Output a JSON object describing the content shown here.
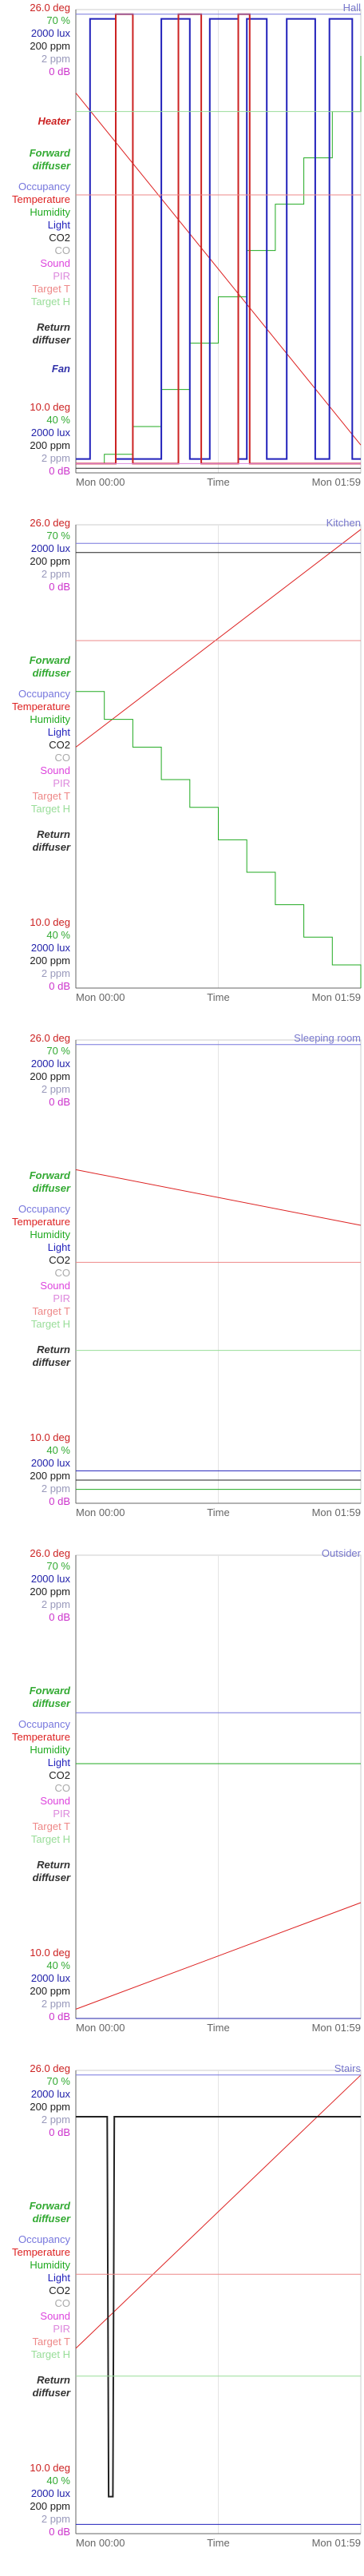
{
  "colors": {
    "deg": "#cc2222",
    "pct": "#33aa33",
    "lux": "#2222aa",
    "ppm": "#222222",
    "ppm2": "#9999bb",
    "db": "#cc33cc",
    "occupancy": "#7777dd",
    "temperature": "#dd2222",
    "humidity": "#22aa22",
    "light": "#2222bb",
    "co2": "#222222",
    "co": "#aaaaaa",
    "sound": "#dd44dd",
    "pir": "#dd88dd",
    "target_t": "#ee8888",
    "target_h": "#99dd99",
    "heater": "#cc2222",
    "forward": "#33aa33",
    "ret": "#333333",
    "fan": "#3333aa",
    "title": "#7777cc",
    "axis": "#666666",
    "grid": "#cccccc"
  },
  "chart_data": [
    {
      "type": "line",
      "title": "Hall",
      "xlabel": "Time",
      "x_ticks": [
        "Mon 00:00",
        "Mon 01:59"
      ],
      "left_labels_top": [
        "26.0 deg",
        "70 %",
        "2000 lux",
        "200 ppm",
        "2 ppm",
        "0 dB"
      ],
      "left_labels_bottom": [
        "10.0 deg",
        "40 %",
        "2000 lux",
        "200 ppm",
        "2 ppm",
        "0 dB"
      ],
      "legend": [
        "Heater",
        "Forward diffuser",
        "Occupancy",
        "Temperature",
        "Humidity",
        "Light",
        "CO2",
        "CO",
        "Sound",
        "PIR",
        "Target T",
        "Target H",
        "Return diffuser",
        "Fan"
      ],
      "series": [
        {
          "key": "temperature",
          "y": [
            0.82,
            0.06
          ]
        },
        {
          "key": "humidity",
          "x": [
            0,
            0.1,
            0.2,
            0.3,
            0.4,
            0.5,
            0.6,
            0.7,
            0.8,
            0.9,
            1
          ],
          "y": [
            0.02,
            0.04,
            0.1,
            0.18,
            0.28,
            0.38,
            0.48,
            0.58,
            0.68,
            0.78,
            0.9
          ]
        },
        {
          "key": "light",
          "levels": [
            0.03,
            0.98
          ],
          "pulses": [
            [
              0.05,
              0.14
            ],
            [
              0.3,
              0.4
            ],
            [
              0.47,
              0.57
            ],
            [
              0.6,
              0.67
            ],
            [
              0.74,
              0.84
            ],
            [
              0.89,
              0.97
            ]
          ]
        },
        {
          "key": "heater",
          "levels": [
            0.02,
            0.99
          ],
          "pulses": [
            [
              0.14,
              0.2
            ],
            [
              0.36,
              0.44
            ],
            [
              0.57,
              0.61
            ]
          ]
        },
        {
          "key": "pir",
          "y": [
            0.02,
            0.02
          ]
        },
        {
          "key": "target_t",
          "y": [
            0.6,
            0.6
          ]
        },
        {
          "key": "target_h",
          "y": [
            0.78,
            0.78
          ]
        },
        {
          "key": "occupancy",
          "y": [
            0.99,
            0.99
          ]
        },
        {
          "key": "co2",
          "y": [
            0.01,
            0.01
          ]
        }
      ]
    },
    {
      "type": "line",
      "title": "Kitchen",
      "xlabel": "Time",
      "x_ticks": [
        "Mon 00:00",
        "Mon 01:59"
      ],
      "left_labels_top": [
        "26.0 deg",
        "70 %",
        "2000 lux",
        "200 ppm",
        "2 ppm",
        "0 dB"
      ],
      "left_labels_bottom": [
        "10.0 deg",
        "40 %",
        "2000 lux",
        "200 ppm",
        "2 ppm",
        "0 dB"
      ],
      "legend": [
        "Forward diffuser",
        "Occupancy",
        "Temperature",
        "Humidity",
        "Light",
        "CO2",
        "CO",
        "Sound",
        "PIR",
        "Target T",
        "Target H",
        "Return diffuser"
      ],
      "series": [
        {
          "key": "temperature",
          "y": [
            0.52,
            0.99
          ]
        },
        {
          "key": "humidity",
          "x": [
            0,
            0.1,
            0.2,
            0.3,
            0.4,
            0.5,
            0.6,
            0.7,
            0.8,
            0.9,
            1
          ],
          "y": [
            0.64,
            0.58,
            0.52,
            0.45,
            0.39,
            0.32,
            0.25,
            0.18,
            0.11,
            0.05,
            0
          ]
        },
        {
          "key": "target_t",
          "y": [
            0.75,
            0.75
          ]
        },
        {
          "key": "occupancy",
          "y": [
            0.96,
            0.96
          ]
        },
        {
          "key": "co2",
          "y": [
            0.94,
            0.94
          ]
        }
      ]
    },
    {
      "type": "line",
      "title": "Sleeping room",
      "xlabel": "Time",
      "x_ticks": [
        "Mon 00:00",
        "Mon 01:59"
      ],
      "left_labels_top": [
        "26.0 deg",
        "70 %",
        "2000 lux",
        "200 ppm",
        "2 ppm",
        "0 dB"
      ],
      "left_labels_bottom": [
        "10.0 deg",
        "40 %",
        "2000 lux",
        "200 ppm",
        "2 ppm",
        "0 dB"
      ],
      "legend": [
        "Forward diffuser",
        "Occupancy",
        "Temperature",
        "Humidity",
        "Light",
        "CO2",
        "CO",
        "Sound",
        "PIR",
        "Target T",
        "Target H",
        "Return diffuser"
      ],
      "series": [
        {
          "key": "temperature",
          "y": [
            0.72,
            0.6
          ]
        },
        {
          "key": "target_t",
          "y": [
            0.52,
            0.52
          ]
        },
        {
          "key": "target_h",
          "y": [
            0.33,
            0.33
          ]
        },
        {
          "key": "occupancy",
          "y": [
            0.99,
            0.99
          ]
        },
        {
          "key": "light",
          "y": [
            0.07,
            0.07
          ]
        },
        {
          "key": "humidity",
          "y": [
            0.03,
            0.03
          ]
        },
        {
          "key": "co2",
          "y": [
            0.05,
            0.05
          ]
        }
      ]
    },
    {
      "type": "line",
      "title": "Outsider",
      "xlabel": "Time",
      "x_ticks": [
        "Mon 00:00",
        "Mon 01:59"
      ],
      "left_labels_top": [
        "26.0 deg",
        "70 %",
        "2000 lux",
        "200 ppm",
        "2 ppm",
        "0 dB"
      ],
      "left_labels_bottom": [
        "10.0 deg",
        "40 %",
        "2000 lux",
        "200 ppm",
        "2 ppm",
        "0 dB"
      ],
      "legend": [
        "Forward diffuser",
        "Occupancy",
        "Temperature",
        "Humidity",
        "Light",
        "CO2",
        "CO",
        "Sound",
        "PIR",
        "Target T",
        "Target H",
        "Return diffuser"
      ],
      "series": [
        {
          "key": "temperature",
          "y": [
            0.02,
            0.25
          ]
        },
        {
          "key": "occupancy",
          "y": [
            0.66,
            0.66
          ]
        },
        {
          "key": "humidity",
          "y": [
            0.55,
            0.55
          ]
        },
        {
          "key": "lux",
          "y": [
            0.0,
            0.0
          ]
        }
      ]
    },
    {
      "type": "line",
      "title": "Stairs",
      "xlabel": "Time",
      "x_ticks": [
        "Mon 00:00",
        "Mon 01:59"
      ],
      "left_labels_top": [
        "26.0 deg",
        "70 %",
        "2000 lux",
        "200 ppm",
        "2 ppm",
        "0 dB"
      ],
      "left_labels_bottom": [
        "10.0 deg",
        "40 %",
        "2000 lux",
        "200 ppm",
        "2 ppm",
        "0 dB"
      ],
      "legend": [
        "Forward diffuser",
        "Occupancy",
        "Temperature",
        "Humidity",
        "Light",
        "CO2",
        "CO",
        "Sound",
        "PIR",
        "Target T",
        "Target H",
        "Return diffuser"
      ],
      "series": [
        {
          "key": "temperature",
          "y": [
            0.4,
            0.99
          ]
        },
        {
          "key": "co2",
          "levels": [
            0.9,
            0.08
          ],
          "dip": [
            0.11,
            0.13
          ]
        },
        {
          "key": "target_t",
          "y": [
            0.56,
            0.56
          ]
        },
        {
          "key": "target_h",
          "y": [
            0.34,
            0.34
          ]
        },
        {
          "key": "occupancy",
          "y": [
            0.99,
            0.99
          ]
        },
        {
          "key": "light",
          "y": [
            0.02,
            0.02
          ]
        }
      ]
    }
  ]
}
